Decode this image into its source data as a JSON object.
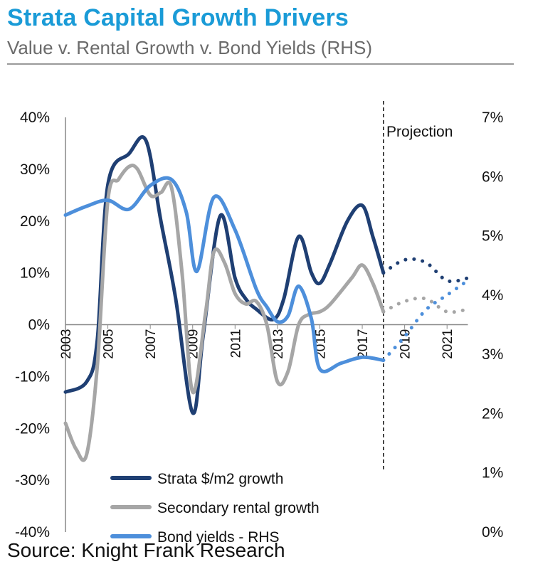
{
  "header": {
    "title": "Strata Capital Growth Drivers",
    "subtitle": "Value v. Rental Growth v. Bond Yields (RHS)"
  },
  "footer": {
    "source": "Source: Knight Frank Research"
  },
  "colors": {
    "title": "#1a9bd7",
    "strata": "#1f3f73",
    "rental": "#a6a6a6",
    "bond": "#4d8fdb",
    "axis": "#888888"
  },
  "chart_data": {
    "type": "line",
    "xlabel": "",
    "ylabel": "",
    "xlim": [
      2003,
      2022
    ],
    "ylim": [
      -40,
      40
    ],
    "y2lim": [
      0,
      7
    ],
    "grid": false,
    "legend_position": "bottom-left",
    "annotation": "Projection",
    "projection_start": 2018,
    "left_ticks": [
      "40%",
      "30%",
      "20%",
      "10%",
      "0%",
      "-10%",
      "-20%",
      "-30%",
      "-40%"
    ],
    "right_ticks": [
      "7%",
      "6%",
      "5%",
      "4%",
      "3%",
      "2%",
      "1%",
      "0%"
    ],
    "x_ticks": [
      "2003",
      "2005",
      "2007",
      "2009",
      "2011",
      "2013",
      "2015",
      "2017",
      "2019",
      "2021"
    ],
    "series": [
      {
        "name": "Strata $/m2 growth",
        "axis": "left",
        "color": "#1f3f73",
        "x": [
          2003,
          2004,
          2004.5,
          2005,
          2006,
          2006.8,
          2007.5,
          2008.2,
          2009,
          2009.5,
          2010.3,
          2011,
          2011.5,
          2012,
          2012.8,
          2013.3,
          2014,
          2014.6,
          2015,
          2015.5,
          2016.3,
          2017,
          2017.5,
          2018
        ],
        "y": [
          -13,
          -11,
          -3,
          27,
          33,
          35.5,
          20,
          5,
          -17,
          -2,
          21,
          9,
          5,
          3,
          1,
          5,
          17,
          10,
          8,
          12,
          20,
          23,
          17,
          10
        ],
        "projection": {
          "x": [
            2018,
            2019,
            2020,
            2021,
            2022
          ],
          "y": [
            10,
            12.5,
            12,
            8.5,
            9
          ]
        }
      },
      {
        "name": "Secondary rental growth",
        "axis": "left",
        "color": "#a6a6a6",
        "x": [
          2003,
          2003.5,
          2004,
          2004.5,
          2005,
          2005.5,
          2006,
          2006.4,
          2007,
          2007.5,
          2008,
          2008.5,
          2009,
          2009.6,
          2010,
          2010.5,
          2011,
          2011.5,
          2012,
          2012.5,
          2013,
          2013.5,
          2014,
          2014.5,
          2015,
          2015.5,
          2016.5,
          2017,
          2017.5,
          2018
        ],
        "y": [
          -19,
          -24,
          -25,
          -8,
          24,
          28,
          30.5,
          30,
          25,
          25.5,
          26.5,
          10,
          -13,
          2,
          14,
          12,
          6,
          4,
          4.5,
          0,
          -11,
          -9,
          0,
          2,
          2.5,
          4,
          9,
          11.5,
          8,
          2.5
        ],
        "projection": {
          "x": [
            2018,
            2019,
            2020,
            2021,
            2022
          ],
          "y": [
            2.5,
            4.5,
            5,
            2.5,
            3
          ]
        }
      },
      {
        "name": "Bond yields - RHS",
        "axis": "right",
        "color": "#4d8fdb",
        "x": [
          2003,
          2004,
          2005,
          2006,
          2007,
          2008,
          2008.7,
          2009.2,
          2010,
          2011,
          2012,
          2012.5,
          2013,
          2013.5,
          2014,
          2014.6,
          2015,
          2016,
          2017,
          2018
        ],
        "y": [
          5.35,
          5.5,
          5.6,
          5.45,
          5.85,
          5.95,
          5.4,
          4.4,
          5.65,
          5.1,
          4.1,
          3.8,
          3.55,
          3.65,
          4.15,
          3.6,
          2.75,
          2.85,
          2.95,
          2.9
        ],
        "projection": {
          "x": [
            2018,
            2019,
            2020,
            2021,
            2022
          ],
          "y": [
            2.9,
            3.3,
            3.75,
            4.0,
            4.25
          ]
        }
      }
    ]
  }
}
